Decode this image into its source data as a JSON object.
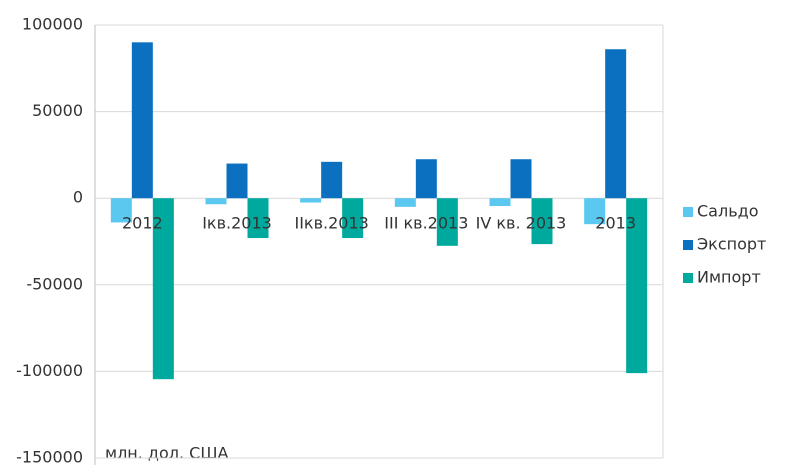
{
  "chart_data": {
    "type": "bar",
    "categories": [
      "2012",
      "Iкв.2013",
      "IIкв.2013",
      "III кв.2013",
      "IV кв. 2013",
      "2013"
    ],
    "series": [
      {
        "name": "Сальдо",
        "color": "#5bc8f0",
        "values": [
          -14000,
          -3500,
          -2500,
          -5000,
          -4500,
          -15000
        ]
      },
      {
        "name": "Экспорт",
        "color": "#0a70bf",
        "values": [
          90000,
          20000,
          21000,
          22500,
          22500,
          86000
        ]
      },
      {
        "name": "Импорт",
        "color": "#00a99d",
        "values": [
          -104500,
          -23000,
          -23000,
          -27500,
          -26500,
          -101000
        ]
      }
    ],
    "y_label": "млн. дол. США",
    "ylim": [
      -150000,
      100000
    ],
    "yticks": [
      -150000,
      -100000,
      -50000,
      0,
      50000,
      100000
    ],
    "grid": true,
    "legend": "right"
  }
}
